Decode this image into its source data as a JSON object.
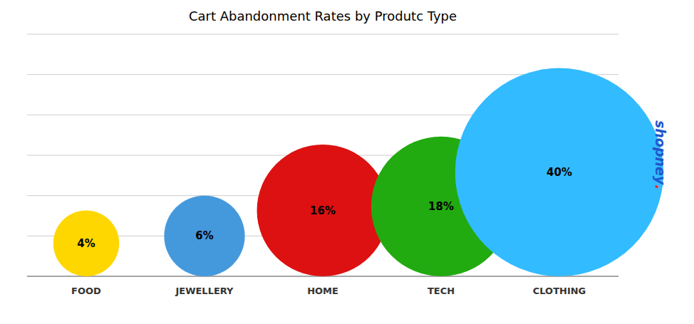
{
  "chart_data": {
    "type": "bubble",
    "title": "Cart Abandonment Rates by Produtc Type",
    "categories": [
      "FOOD",
      "JEWELLERY",
      "HOME",
      "TECH",
      "CLOTHING"
    ],
    "values": [
      4,
      6,
      16,
      18,
      40
    ],
    "value_labels": [
      "4%",
      "6%",
      "16%",
      "18%",
      "40%"
    ],
    "colors": [
      "#FFD700",
      "#4499DD",
      "#DD1111",
      "#22AA11",
      "#33BBFF"
    ],
    "data_labels": true,
    "tick_labels": "x",
    "grid": true,
    "annotations": [
      {
        "text": "shopney",
        "color": "#2255CC"
      },
      {
        "text": ".",
        "color": "#FF2222"
      }
    ]
  }
}
